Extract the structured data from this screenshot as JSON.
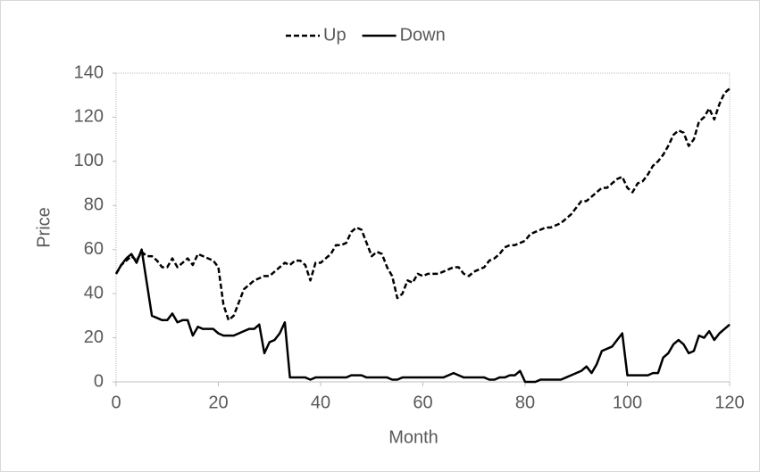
{
  "chart_data": {
    "type": "line",
    "x_label": "Month",
    "y_label": "Price",
    "x": [
      0,
      1,
      2,
      3,
      4,
      5,
      6,
      7,
      8,
      9,
      10,
      11,
      12,
      13,
      14,
      15,
      16,
      17,
      18,
      19,
      20,
      21,
      22,
      23,
      24,
      25,
      26,
      27,
      28,
      29,
      30,
      31,
      32,
      33,
      34,
      35,
      36,
      37,
      38,
      39,
      40,
      41,
      42,
      43,
      44,
      45,
      46,
      47,
      48,
      49,
      50,
      51,
      52,
      53,
      54,
      55,
      56,
      57,
      58,
      59,
      60,
      61,
      62,
      63,
      64,
      65,
      66,
      67,
      68,
      69,
      70,
      71,
      72,
      73,
      74,
      75,
      76,
      77,
      78,
      79,
      80,
      81,
      82,
      83,
      84,
      85,
      86,
      87,
      88,
      89,
      90,
      91,
      92,
      93,
      94,
      95,
      96,
      97,
      98,
      99,
      100,
      101,
      102,
      103,
      104,
      105,
      106,
      107,
      108,
      109,
      110,
      111,
      112,
      113,
      114,
      115,
      116,
      117,
      118,
      119,
      120
    ],
    "series": [
      {
        "name": "Up",
        "color": "#000000",
        "style": "dashed",
        "values": [
          49,
          53,
          55,
          57,
          55,
          59,
          57,
          57,
          55,
          52,
          52,
          56,
          52,
          54,
          56,
          53,
          58,
          57,
          56,
          55,
          52,
          35,
          28,
          30,
          36,
          42,
          44,
          46,
          47,
          48,
          48,
          50,
          52,
          54,
          53,
          55,
          55,
          53,
          46,
          54,
          54,
          56,
          58,
          62,
          62,
          63,
          68,
          70,
          69,
          63,
          57,
          59,
          58,
          52,
          48,
          38,
          40,
          46,
          45,
          49,
          48,
          49,
          49,
          49,
          50,
          51,
          52,
          52,
          49,
          48,
          50,
          51,
          52,
          55,
          56,
          58,
          61,
          62,
          62,
          63,
          64,
          67,
          68,
          69,
          70,
          70,
          71,
          72,
          74,
          76,
          79,
          82,
          82,
          84,
          86,
          88,
          88,
          90,
          92,
          93,
          88,
          86,
          90,
          91,
          94,
          98,
          100,
          103,
          107,
          112,
          114,
          113,
          107,
          110,
          118,
          120,
          124,
          119,
          126,
          131,
          133
        ]
      },
      {
        "name": "Down",
        "color": "#000000",
        "style": "solid",
        "values": [
          49,
          53,
          56,
          58,
          54,
          60,
          45,
          30,
          29,
          28,
          28,
          31,
          27,
          28,
          28,
          21,
          25,
          24,
          24,
          24,
          22,
          21,
          21,
          21,
          22,
          23,
          24,
          24,
          26,
          13,
          18,
          19,
          22,
          27,
          2,
          2,
          2,
          2,
          1,
          2,
          2,
          2,
          2,
          2,
          2,
          2,
          3,
          3,
          3,
          2,
          2,
          2,
          2,
          2,
          1,
          1,
          2,
          2,
          2,
          2,
          2,
          2,
          2,
          2,
          2,
          3,
          4,
          3,
          2,
          2,
          2,
          2,
          2,
          1,
          1,
          2,
          2,
          3,
          3,
          5,
          0,
          0,
          0,
          1,
          1,
          1,
          1,
          1,
          2,
          3,
          4,
          5,
          7,
          4,
          8,
          14,
          15,
          16,
          19,
          22,
          3,
          3,
          3,
          3,
          3,
          4,
          4,
          11,
          13,
          17,
          19,
          17,
          13,
          14,
          21,
          20,
          23,
          19,
          22,
          24,
          26
        ]
      }
    ],
    "xlim": [
      0,
      120
    ],
    "xticks": [
      0,
      20,
      40,
      60,
      80,
      100,
      120
    ],
    "ylim": [
      0,
      140
    ],
    "yticks": [
      0,
      20,
      40,
      60,
      80,
      100,
      120,
      140
    ],
    "legend": "top"
  }
}
